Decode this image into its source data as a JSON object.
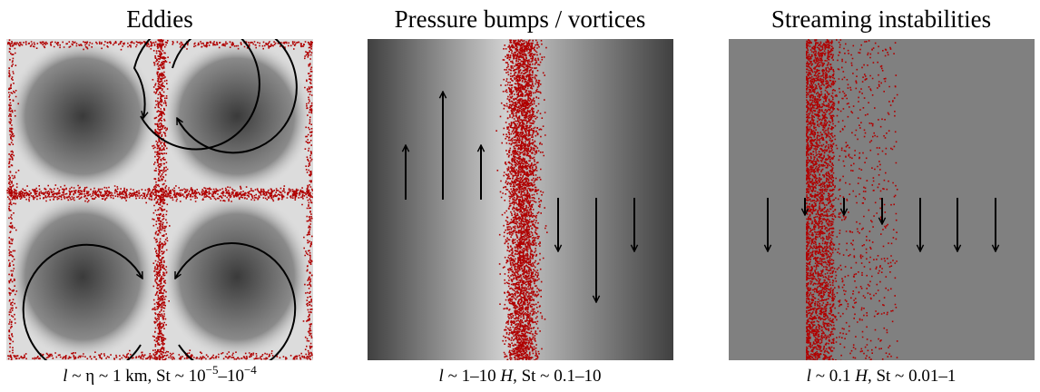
{
  "panels": [
    {
      "title": "Eddies",
      "caption": [
        "l",
        " ~ η ~ 1 km, St ~ 10",
        "−5",
        "–10",
        "−4"
      ]
    },
    {
      "title": "Pressure bumps / vortices",
      "caption": [
        "l",
        " ~ 1–10 ",
        "H",
        ", St ~ 0.1–10"
      ]
    },
    {
      "title": "Streaming instabilities",
      "caption": [
        "l",
        " ~ 0.1 ",
        "H",
        ", St ~ 0.01–1"
      ]
    }
  ]
}
